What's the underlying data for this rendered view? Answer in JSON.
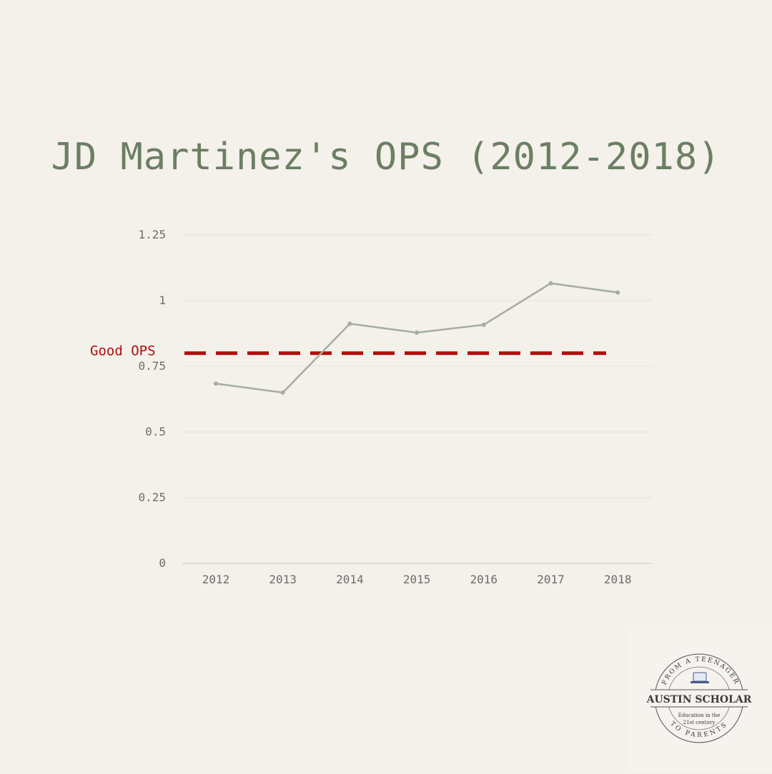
{
  "chart_data": {
    "type": "line",
    "title": "JD Martinez's OPS (2012-2018)",
    "xlabel": "",
    "ylabel": "",
    "categories": [
      "2012",
      "2013",
      "2014",
      "2015",
      "2016",
      "2017",
      "2018"
    ],
    "series": [
      {
        "values": [
          0.684,
          0.65,
          0.912,
          0.878,
          0.908,
          1.066,
          1.031
        ]
      }
    ],
    "ylim": [
      0,
      1.25
    ],
    "yticks": [
      "0",
      "0.25",
      "0.5",
      "0.75",
      "1",
      "1.25"
    ],
    "ytick_values": [
      0,
      0.25,
      0.5,
      0.75,
      1,
      1.25
    ],
    "grid": true,
    "reference_line": {
      "label": "Good OPS",
      "value": 0.8,
      "style": "dashed"
    },
    "colors": {
      "line": "#a5ada3",
      "reference": "#b20d0d",
      "title": "#6b7f63",
      "grid": "#e4e0da"
    }
  },
  "logo": {
    "top_arc_text": "FROM A TEENAGER",
    "banner_text": "AUSTIN SCHOLAR",
    "subtitle_line1": "Education in the",
    "subtitle_line2": "21st century",
    "bottom_arc_text": "TO PARENTS",
    "icon": "laptop-icon"
  }
}
